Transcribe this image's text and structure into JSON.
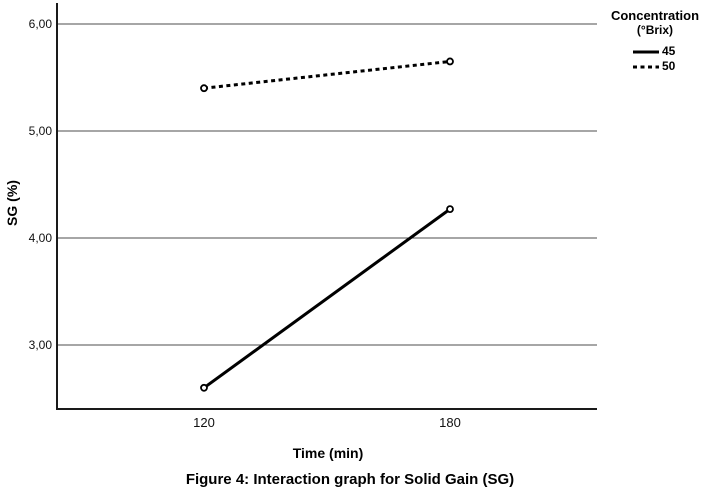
{
  "figure": {
    "caption": "Figure 4: Interaction graph for Solid Gain (SG)"
  },
  "chart_data": {
    "type": "line",
    "title": "",
    "xlabel": "Time (min)",
    "ylabel": "SG (%)",
    "x": [
      120,
      180
    ],
    "x_tick_labels": [
      "120",
      "180"
    ],
    "y_ticks": [
      3.0,
      4.0,
      5.0,
      6.0
    ],
    "y_tick_labels": [
      "3,00",
      "4,00",
      "5,00",
      "6,00"
    ],
    "ylim": [
      2.4,
      6.2
    ],
    "grid": "horizontal",
    "marker": "open-circle",
    "legend": {
      "title": "Concentration",
      "subtitle": "(°Brix)",
      "position": "top-right-outside",
      "entries": [
        {
          "label": "45",
          "style": "solid"
        },
        {
          "label": "50",
          "style": "dashed"
        }
      ]
    },
    "series": [
      {
        "name": "45",
        "style": "solid",
        "values": [
          2.6,
          4.27
        ]
      },
      {
        "name": "50",
        "style": "dashed",
        "values": [
          5.4,
          5.65
        ]
      }
    ],
    "colors": {
      "line": "#000000",
      "grid": "#4d4d4d",
      "axis": "#1a1a1a",
      "text": "#000000",
      "background": "#ffffff"
    }
  }
}
